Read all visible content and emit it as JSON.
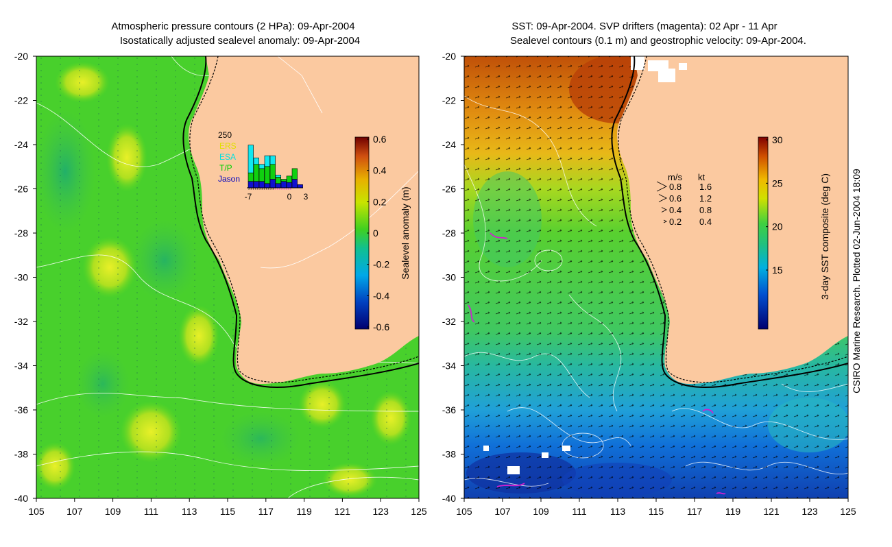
{
  "left_panel": {
    "title_line1": "Atmospheric pressure contours (2 HPa): 09-Apr-2004",
    "title_line2": "Isostatically adjusted sealevel anomaly: 09-Apr-2004",
    "y_ticks": [
      "-20",
      "-22",
      "-24",
      "-26",
      "-28",
      "-30",
      "-32",
      "-34",
      "-36",
      "-38",
      "-40"
    ],
    "x_ticks": [
      "105",
      "107",
      "109",
      "111",
      "113",
      "115",
      "117",
      "119",
      "121",
      "123",
      "125"
    ],
    "colorbar": {
      "label": "Sealevel anomaly (m)",
      "ticks": [
        "0.6",
        "0.4",
        "0.2",
        "0",
        "-0.2",
        "-0.4",
        "-0.6"
      ],
      "colors": [
        "#000080",
        "#0040c0",
        "#00a0e0",
        "#20c080",
        "#40d020",
        "#c0e000",
        "#e0b000",
        "#d05000",
        "#801000"
      ]
    },
    "inset_histogram": {
      "y_max_label": "250",
      "legend": [
        {
          "label": "ERS",
          "color": "#e0e000"
        },
        {
          "label": "ESA",
          "color": "#00e0e0"
        },
        {
          "label": "T/P",
          "color": "#00d000"
        },
        {
          "label": "Jason",
          "color": "#0000c0"
        }
      ],
      "x_labels": [
        "-7",
        "0",
        "3"
      ],
      "bars": [
        {
          "day": -7,
          "jason": 30,
          "tp": 40,
          "esa": 130
        },
        {
          "day": -6,
          "jason": 30,
          "tp": 80,
          "esa": 30
        },
        {
          "day": -5,
          "jason": 30,
          "tp": 60,
          "esa": 20
        },
        {
          "day": -4,
          "jason": 20,
          "tp": 80,
          "esa": 50
        },
        {
          "day": -3,
          "jason": 40,
          "tp": 70,
          "esa": 40
        },
        {
          "day": -2,
          "jason": 20,
          "tp": 30,
          "esa": 10
        },
        {
          "day": -1,
          "jason": 30,
          "tp": 10,
          "esa": 0
        },
        {
          "day": 0,
          "jason": 25,
          "tp": 30,
          "esa": 0
        },
        {
          "day": 1,
          "jason": 40,
          "tp": 50,
          "esa": 0
        },
        {
          "day": 2,
          "jason": 15,
          "tp": 0,
          "esa": 0
        }
      ]
    }
  },
  "right_panel": {
    "title_line1": "SST: 09-Apr-2004. SVP drifters (magenta): 02 Apr - 11 Apr",
    "title_line2": "Sealevel contours (0.1 m) and geostrophic velocity: 09-Apr-2004.",
    "y_ticks": [
      "-20",
      "-22",
      "-24",
      "-26",
      "-28",
      "-30",
      "-32",
      "-34",
      "-36",
      "-38",
      "-40"
    ],
    "x_ticks": [
      "105",
      "107",
      "109",
      "111",
      "113",
      "115",
      "117",
      "119",
      "121",
      "123",
      "125"
    ],
    "colorbar": {
      "label": "3-day SST composite (deg C)",
      "ticks": [
        "30",
        "25",
        "20",
        "15"
      ],
      "colors": [
        "#000080",
        "#0050d0",
        "#00b0e0",
        "#20c080",
        "#40d040",
        "#c0e000",
        "#f0c000",
        "#e06000",
        "#900000"
      ]
    },
    "velocity_key": {
      "header_ms": "m/s",
      "header_kt": "kt",
      "rows": [
        {
          "ms": "0.8",
          "kt": "1.6"
        },
        {
          "ms": "0.6",
          "kt": "1.2"
        },
        {
          "ms": "0.4",
          "kt": "0.8"
        },
        {
          "ms": "0.2",
          "kt": "0.4"
        }
      ]
    }
  },
  "credit": "CSIRO Marine Research. Plotted 02-Jun-2004 18:09",
  "colors": {
    "land": "#fbc9a0",
    "ocean_green": "#4ed42a",
    "warm": "#e08a10",
    "cold": "#1060d0"
  }
}
